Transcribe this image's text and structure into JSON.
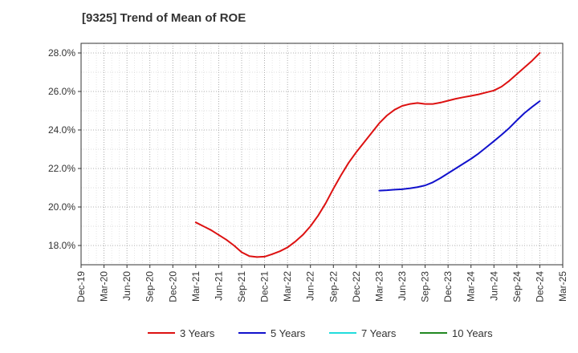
{
  "chart_data": {
    "type": "line",
    "title": "[9325]  Trend of Mean of ROE",
    "xlabel": "",
    "ylabel": "",
    "x_ticks": [
      "Dec-19",
      "Mar-20",
      "Jun-20",
      "Sep-20",
      "Dec-20",
      "Mar-21",
      "Jun-21",
      "Sep-21",
      "Dec-21",
      "Mar-22",
      "Jun-22",
      "Sep-22",
      "Dec-22",
      "Mar-23",
      "Jun-23",
      "Sep-23",
      "Dec-23",
      "Mar-24",
      "Jun-24",
      "Sep-24",
      "Dec-24",
      "Mar-25"
    ],
    "y_ticks": [
      18.0,
      20.0,
      22.0,
      24.0,
      26.0,
      28.0
    ],
    "y_tick_labels": [
      "18.0%",
      "20.0%",
      "22.0%",
      "24.0%",
      "26.0%",
      "28.0%"
    ],
    "ylim": [
      17.0,
      28.5
    ],
    "grid": true,
    "legend_position": "bottom",
    "series": [
      {
        "name": "3 Years",
        "color": "#dd1111",
        "x": [
          "Mar-21",
          "Apr-21",
          "May-21",
          "Jun-21",
          "Jul-21",
          "Aug-21",
          "Sep-21",
          "Oct-21",
          "Nov-21",
          "Dec-21",
          "Jan-22",
          "Feb-22",
          "Mar-22",
          "Apr-22",
          "May-22",
          "Jun-22",
          "Jul-22",
          "Aug-22",
          "Sep-22",
          "Oct-22",
          "Nov-22",
          "Dec-22",
          "Jan-23",
          "Feb-23",
          "Mar-23",
          "Apr-23",
          "May-23",
          "Jun-23",
          "Jul-23",
          "Aug-23",
          "Sep-23",
          "Oct-23",
          "Nov-23",
          "Dec-23",
          "Jan-24",
          "Feb-24",
          "Mar-24",
          "Apr-24",
          "May-24",
          "Jun-24",
          "Jul-24",
          "Aug-24",
          "Sep-24",
          "Oct-24",
          "Nov-24",
          "Dec-24"
        ],
        "values": [
          19.2,
          19.0,
          18.8,
          18.55,
          18.3,
          18.0,
          17.65,
          17.45,
          17.4,
          17.42,
          17.55,
          17.7,
          17.9,
          18.2,
          18.55,
          19.0,
          19.55,
          20.2,
          20.95,
          21.65,
          22.3,
          22.85,
          23.35,
          23.85,
          24.35,
          24.75,
          25.05,
          25.25,
          25.35,
          25.4,
          25.35,
          25.35,
          25.42,
          25.52,
          25.62,
          25.7,
          25.77,
          25.85,
          25.95,
          26.05,
          26.25,
          26.55,
          26.9,
          27.25,
          27.6,
          28.0
        ]
      },
      {
        "name": "5 Years",
        "color": "#1111cc",
        "x": [
          "Mar-23",
          "Apr-23",
          "May-23",
          "Jun-23",
          "Jul-23",
          "Aug-23",
          "Sep-23",
          "Oct-23",
          "Nov-23",
          "Dec-23",
          "Jan-24",
          "Feb-24",
          "Mar-24",
          "Apr-24",
          "May-24",
          "Jun-24",
          "Jul-24",
          "Aug-24",
          "Sep-24",
          "Oct-24",
          "Nov-24",
          "Dec-24"
        ],
        "values": [
          20.85,
          20.87,
          20.9,
          20.92,
          20.97,
          21.03,
          21.12,
          21.28,
          21.5,
          21.75,
          22.0,
          22.25,
          22.5,
          22.78,
          23.1,
          23.42,
          23.75,
          24.1,
          24.5,
          24.88,
          25.2,
          25.5
        ]
      },
      {
        "name": "7 Years",
        "color": "#22dddd",
        "x": [],
        "values": []
      },
      {
        "name": "10 Years",
        "color": "#228822",
        "x": [],
        "values": []
      }
    ]
  }
}
